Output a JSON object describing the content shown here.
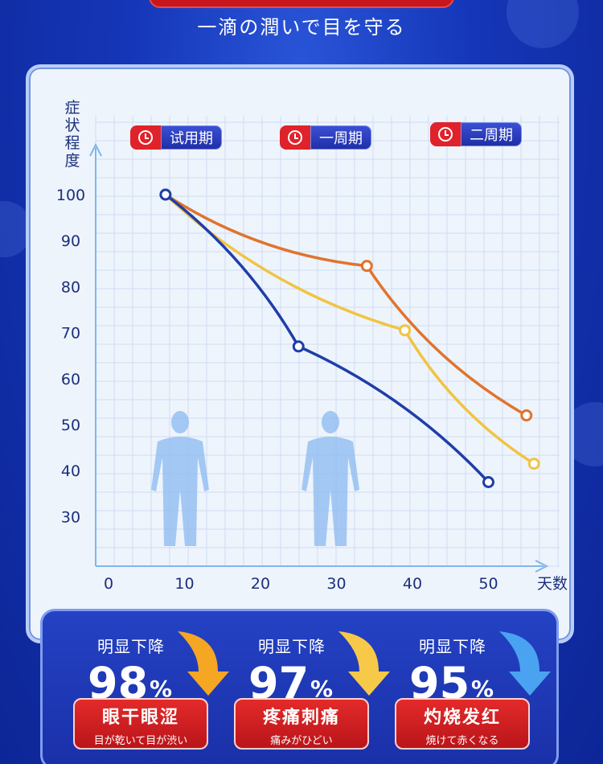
{
  "header": {
    "subtitle": "一滴の潤いで目を守る"
  },
  "periods": [
    {
      "label": "试用期"
    },
    {
      "label": "一周期"
    },
    {
      "label": "二周期"
    }
  ],
  "chart_data": {
    "type": "line",
    "ylabel": "症状程度",
    "xlabel": "天数",
    "x_ticks": [
      0,
      10,
      20,
      30,
      40,
      50
    ],
    "y_ticks": [
      100,
      90,
      80,
      70,
      60,
      50,
      40,
      30
    ],
    "xlim": [
      0,
      55
    ],
    "ylim": [
      25,
      100
    ],
    "grid": true,
    "series": [
      {
        "color": "#e0742c",
        "points": [
          [
            7.5,
            100
          ],
          [
            34,
            84.5
          ],
          [
            55,
            52
          ]
        ]
      },
      {
        "color": "#f0c443",
        "points": [
          [
            7.5,
            100
          ],
          [
            39,
            70.5
          ],
          [
            56,
            41.5
          ]
        ]
      },
      {
        "color": "#1f3ea8",
        "points": [
          [
            7.5,
            100
          ],
          [
            25,
            67
          ],
          [
            50,
            37.5
          ]
        ]
      }
    ]
  },
  "stats": [
    {
      "heading": "明显下降",
      "value": "98",
      "unit": "%",
      "title": "眼干眼涩",
      "caption": "目が乾いて目が渋い",
      "arrow_color": "#f5a623"
    },
    {
      "heading": "明显下降",
      "value": "97",
      "unit": "%",
      "title": "疼痛刺痛",
      "caption": "痛みがひどい",
      "arrow_color": "#f7c948"
    },
    {
      "heading": "明显下降",
      "value": "95",
      "unit": "%",
      "title": "灼烧发红",
      "caption": "焼けて赤くなる",
      "arrow_color": "#4aa3f0"
    }
  ]
}
